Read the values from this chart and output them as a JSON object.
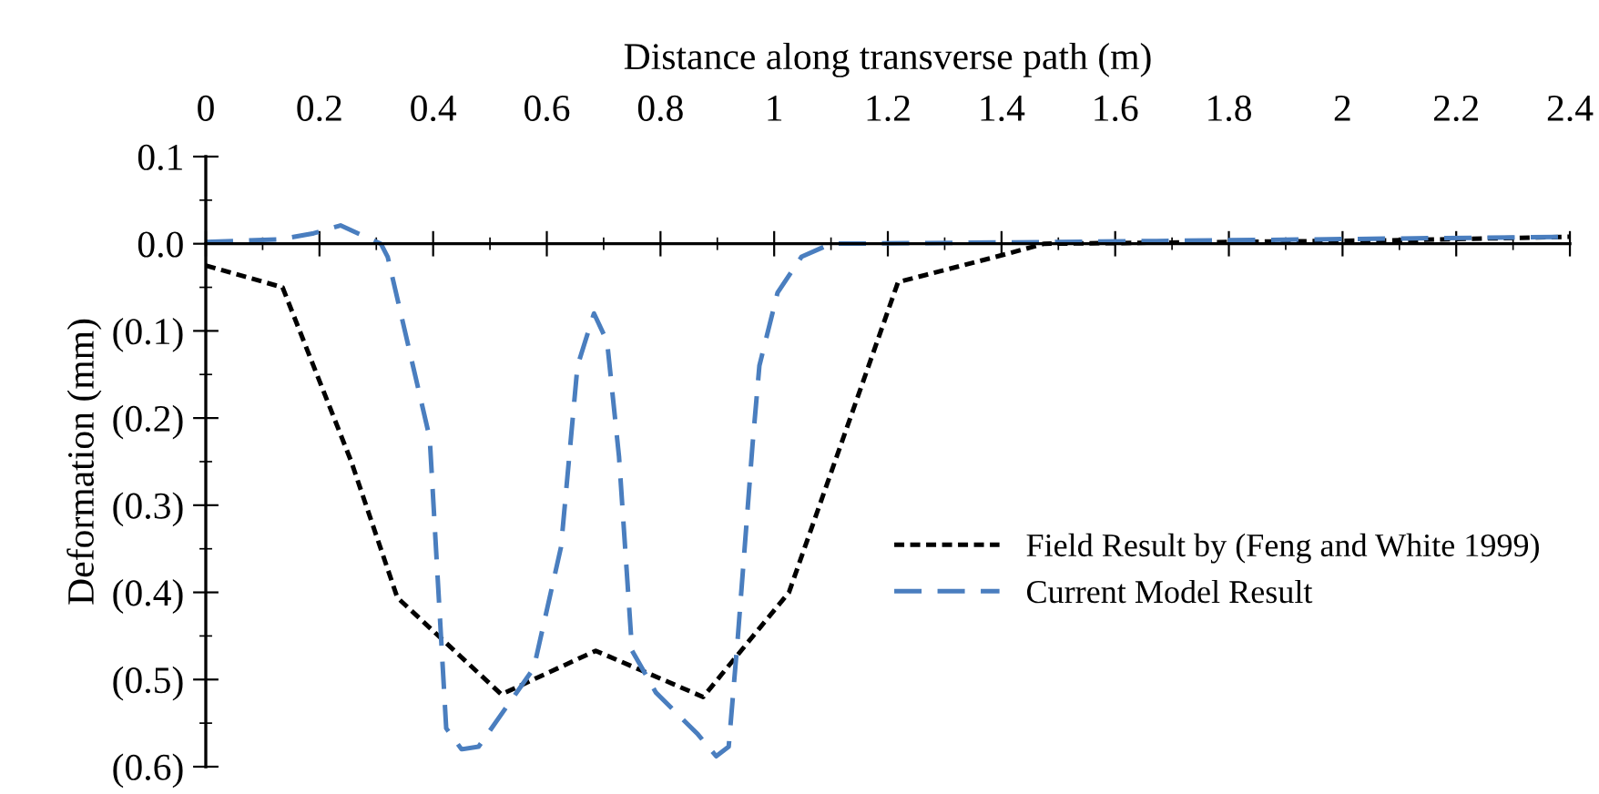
{
  "chart_data": {
    "type": "line",
    "xlabel": "Distance along transverse path (m)",
    "ylabel": "Deformation (mm)",
    "xlim": [
      0,
      2.4
    ],
    "xticks": [
      0,
      0.2,
      0.4,
      0.6,
      0.8,
      1,
      1.2,
      1.4,
      1.6,
      1.8,
      2,
      2.2,
      2.4
    ],
    "ylim": [
      -0.6,
      0.1
    ],
    "yticks": [
      0.1,
      {
        "value": 0,
        "label": "0.0"
      },
      {
        "value": -0.1,
        "label": "(0.1)"
      },
      {
        "value": -0.2,
        "label": "(0.2)"
      },
      {
        "value": -0.3,
        "label": "(0.3)"
      },
      {
        "value": -0.4,
        "label": "(0.4)"
      },
      {
        "value": -0.5,
        "label": "(0.5)"
      },
      {
        "value": -0.6,
        "label": "(0.6)"
      }
    ],
    "legend": "right",
    "marker": "none",
    "series": [
      {
        "name": "Field Result by (Feng and White 1999)",
        "color": "#000000",
        "line_style": "dotted",
        "x": [
          0,
          0.135,
          0.256,
          0.337,
          0.52,
          0.686,
          0.875,
          1.026,
          1.218,
          1.39,
          1.475,
          1.8,
          2.1,
          2.4
        ],
        "values": [
          -0.025,
          -0.05,
          -0.25,
          -0.406,
          -0.517,
          -0.467,
          -0.52,
          -0.4,
          -0.044,
          -0.015,
          0.0,
          0.002,
          0.004,
          0.008
        ]
      },
      {
        "name": "Current Model Result",
        "color": "#4a7ebf",
        "line_style": "dashed",
        "x": [
          0,
          0.13,
          0.19,
          0.237,
          0.308,
          0.32,
          0.394,
          0.423,
          0.45,
          0.48,
          0.577,
          0.625,
          0.654,
          0.683,
          0.706,
          0.727,
          0.75,
          0.792,
          0.866,
          0.898,
          0.92,
          0.936,
          0.962,
          0.974,
          1.006,
          1.048,
          1.1,
          1.5,
          1.8,
          2.1,
          2.4
        ],
        "values": [
          0.002,
          0.005,
          0.012,
          0.021,
          0.0,
          -0.015,
          -0.223,
          -0.556,
          -0.58,
          -0.577,
          -0.487,
          -0.348,
          -0.14,
          -0.08,
          -0.112,
          -0.244,
          -0.467,
          -0.515,
          -0.563,
          -0.588,
          -0.577,
          -0.452,
          -0.23,
          -0.14,
          -0.056,
          -0.015,
          0.0,
          0.002,
          0.004,
          0.006,
          0.008
        ]
      }
    ]
  }
}
